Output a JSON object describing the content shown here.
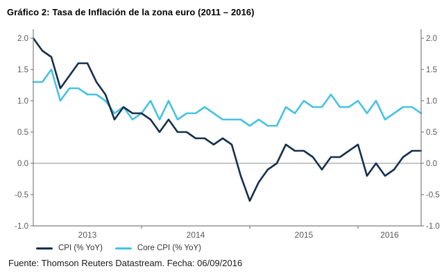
{
  "title": "Gráfico 2: Tasa de Inflación de la zona euro (2011 – 2016)",
  "footer": "Fuente: Thomson Reuters Datastream. Fecha: 06/09/2016",
  "colors": {
    "cpi_line": "#16304d",
    "core_cpi_line": "#46c3e0",
    "axis": "#7f7f7f",
    "zero_line": "#8c8c8c",
    "tick_label": "#595959",
    "legend_text": "#333333",
    "background": "#ffffff"
  },
  "chart_data": {
    "type": "line",
    "title": "Gráfico 2: Tasa de Inflación de la zona euro (2011 – 2016)",
    "frequency": "monthly",
    "x_start": "2013-01",
    "x_end": "2016-08",
    "ylim": [
      -1.0,
      2.0
    ],
    "grid": "zero-line-only",
    "legend_position": "bottom-left",
    "y_ticks": [
      {
        "v": 2.0,
        "label": "2.0"
      },
      {
        "v": 1.5,
        "label": "1.5"
      },
      {
        "v": 1.0,
        "label": "1.0"
      },
      {
        "v": 0.5,
        "label": "0.5"
      },
      {
        "v": 0.0,
        "label": "0.0"
      },
      {
        "v": -0.5,
        "label": "-0.5"
      },
      {
        "v": -1.0,
        "label": "-1.0"
      }
    ],
    "x_year_tick_months": [
      12,
      24,
      36
    ],
    "x_labels": [
      {
        "label": "2013",
        "month": 6
      },
      {
        "label": "2014",
        "month": 18
      },
      {
        "label": "2015",
        "month": 30
      },
      {
        "label": "2016",
        "month": 39.5
      }
    ],
    "series": [
      {
        "name": "CPI (% YoY)",
        "color": "#16304d",
        "values": [
          2.0,
          1.8,
          1.7,
          1.2,
          1.4,
          1.6,
          1.6,
          1.3,
          1.1,
          0.7,
          0.9,
          0.8,
          0.8,
          0.7,
          0.5,
          0.7,
          0.5,
          0.5,
          0.4,
          0.4,
          0.3,
          0.4,
          0.3,
          -0.2,
          -0.6,
          -0.3,
          -0.1,
          0.0,
          0.3,
          0.2,
          0.2,
          0.1,
          -0.1,
          0.1,
          0.1,
          0.2,
          0.3,
          -0.2,
          0.0,
          -0.2,
          -0.1,
          0.1,
          0.2,
          0.2
        ]
      },
      {
        "name": "Core CPI (% YoY)",
        "color": "#46c3e0",
        "values": [
          1.3,
          1.3,
          1.5,
          1.0,
          1.2,
          1.2,
          1.1,
          1.1,
          1.0,
          0.8,
          0.9,
          0.7,
          0.8,
          1.0,
          0.7,
          1.0,
          0.7,
          0.8,
          0.8,
          0.9,
          0.8,
          0.7,
          0.7,
          0.7,
          0.6,
          0.7,
          0.6,
          0.6,
          0.9,
          0.8,
          1.0,
          0.9,
          0.9,
          1.1,
          0.9,
          0.9,
          1.0,
          0.8,
          1.0,
          0.7,
          0.8,
          0.9,
          0.9,
          0.8
        ]
      }
    ]
  }
}
